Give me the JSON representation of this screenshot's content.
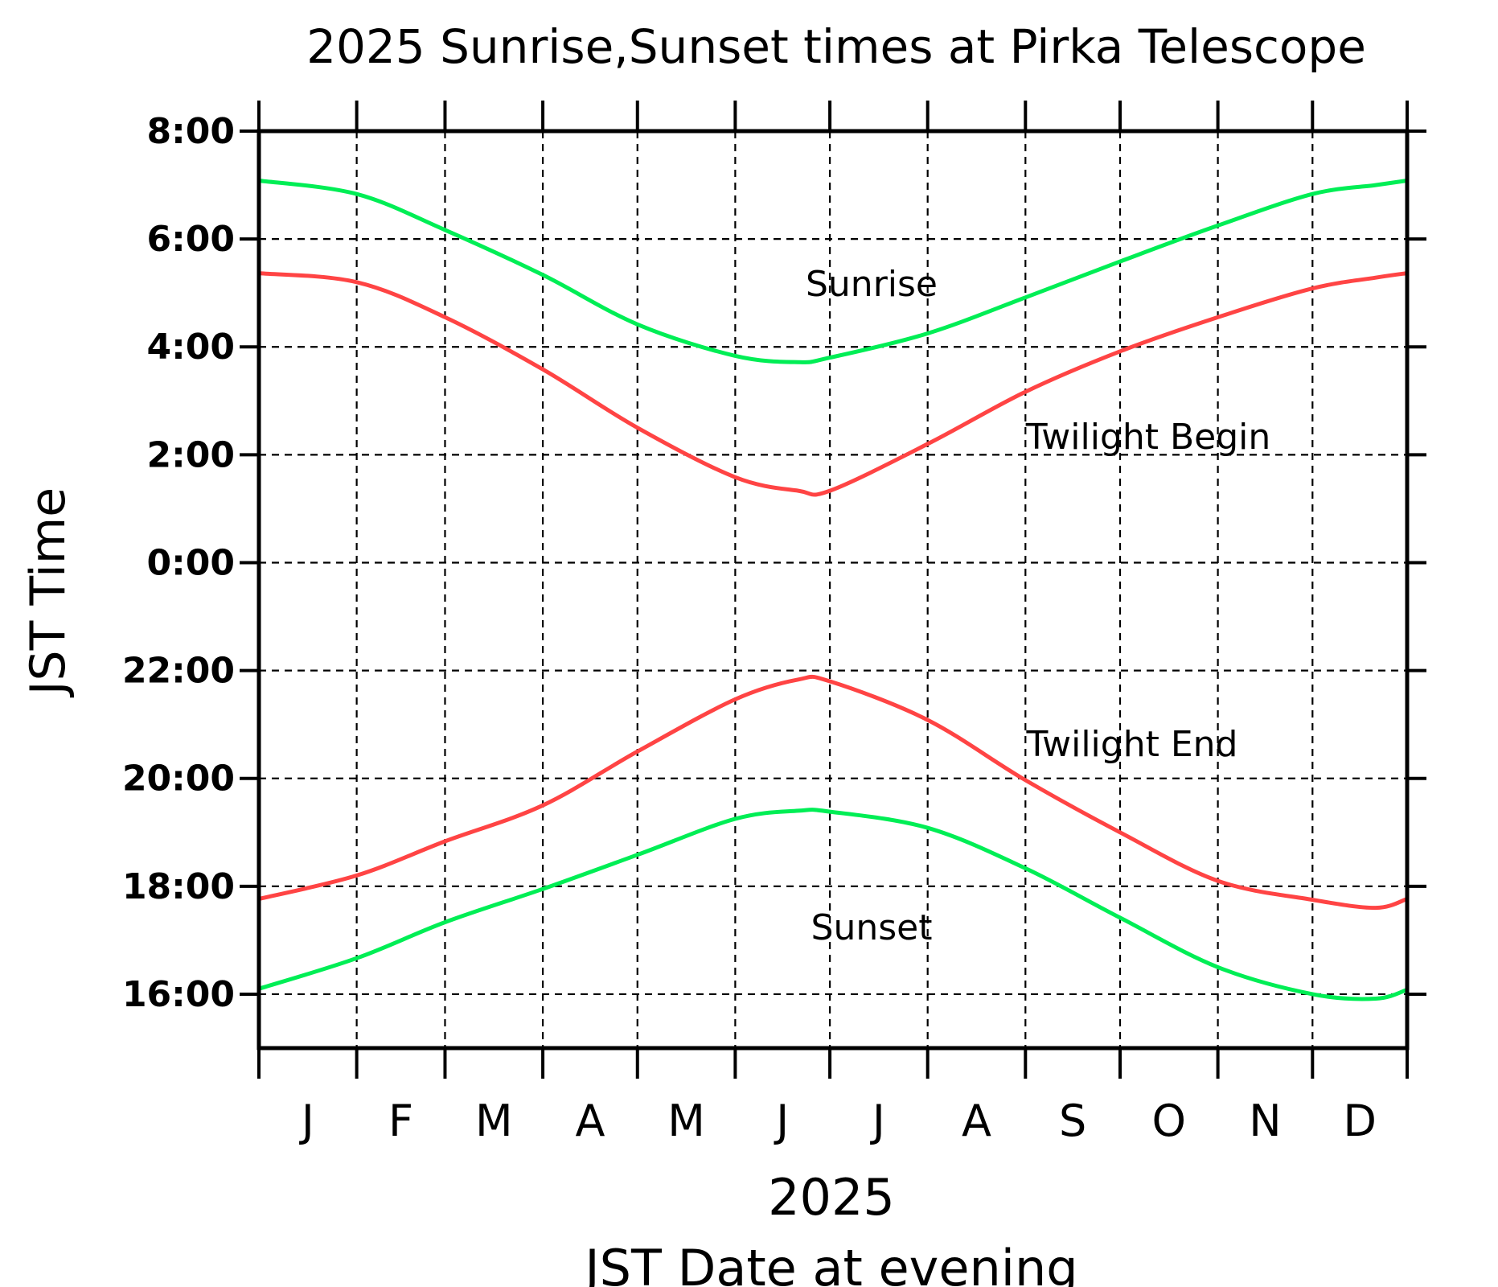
{
  "chart_data": {
    "type": "line",
    "title": "2025 Sunrise,Sunset times at Pirka Telescope",
    "xlabel_year": "2025",
    "xlabel": "JST Date at evening",
    "ylabel": "JST Time",
    "x_unit": "month of 2025",
    "xlim": [
      "2025-01-01",
      "2025-12-31"
    ],
    "month_ticks": [
      "J",
      "F",
      "M",
      "A",
      "M",
      "J",
      "J",
      "A",
      "S",
      "O",
      "N",
      "D"
    ],
    "yticks": [
      "8:00",
      "6:00",
      "4:00",
      "2:00",
      "0:00",
      "22:00",
      "20:00",
      "18:00",
      "16:00"
    ],
    "y_axis_note": "time of night, 8:00 at top descending through 0:00 to 15:00 at bottom",
    "ylim_top": "8:00",
    "ylim_bottom": "15:00",
    "grid": true,
    "x": [
      "Jan 1",
      "Feb 1",
      "Mar 1",
      "Apr 1",
      "May 1",
      "Jun 1",
      "Jun 21",
      "Jul 1",
      "Aug 1",
      "Sep 1",
      "Oct 1",
      "Nov 1",
      "Dec 1",
      "Dec 21",
      "Dec 31"
    ],
    "x_dates": [
      "2025-01-01",
      "2025-02-01",
      "2025-03-01",
      "2025-04-01",
      "2025-05-01",
      "2025-06-01",
      "2025-06-21",
      "2025-07-01",
      "2025-08-01",
      "2025-09-01",
      "2025-10-01",
      "2025-11-01",
      "2025-12-01",
      "2025-12-21",
      "2025-12-31"
    ],
    "series": [
      {
        "name": "Sunrise",
        "color": "#00ee55",
        "values": [
          "7:05",
          "6:50",
          "6:10",
          "5:20",
          "4:25",
          "3:50",
          "3:43",
          "3:48",
          "4:15",
          "4:55",
          "5:35",
          "6:15",
          "6:50",
          "7:00",
          "7:05"
        ]
      },
      {
        "name": "Twilight Begin",
        "color": "#ff4444",
        "values": [
          "5:22",
          "5:12",
          "4:33",
          "3:35",
          "2:30",
          "1:35",
          "1:20",
          "1:20",
          "2:12",
          "3:10",
          "3:55",
          "4:33",
          "5:05",
          "5:17",
          "5:22"
        ]
      },
      {
        "name": "Twilight End",
        "color": "#ff4444",
        "values": [
          "17:46",
          "18:12",
          "18:50",
          "19:30",
          "20:30",
          "21:28",
          "21:50",
          "21:48",
          "21:05",
          "19:58",
          "19:00",
          "18:06",
          "17:45",
          "17:36",
          "17:46"
        ]
      },
      {
        "name": "Sunset",
        "color": "#00ee55",
        "values": [
          "16:06",
          "16:40",
          "17:20",
          "17:57",
          "18:35",
          "19:15",
          "19:24",
          "19:23",
          "19:05",
          "18:20",
          "17:25",
          "16:30",
          "16:00",
          "15:55",
          "16:05"
        ]
      }
    ],
    "annotations": [
      "Sunrise",
      "Twilight Begin",
      "Twilight End",
      "Sunset"
    ]
  }
}
